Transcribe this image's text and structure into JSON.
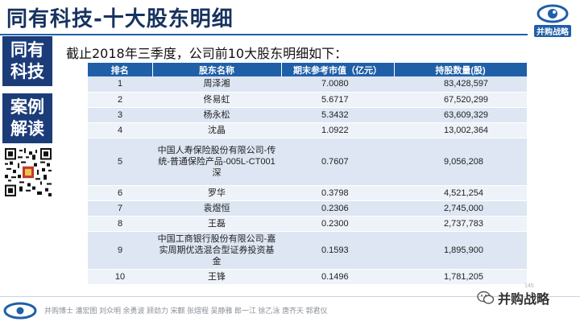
{
  "header": {
    "title": "同有科技-十大股东明细",
    "logo_text": "并购战略"
  },
  "side": {
    "block1_line1": "同有",
    "block1_line2": "科技",
    "block2_line1": "案例",
    "block2_line2": "解读"
  },
  "intro": "截止2018年三季度，公司前10大股东明细如下：",
  "table": {
    "headers": [
      "排名",
      "股东名称",
      "期末参考市值（亿元）",
      "持股数量(股)"
    ],
    "rows": [
      {
        "rank": "1",
        "name": "周泽湘",
        "value": "7.0080",
        "shares": "83,428,597"
      },
      {
        "rank": "2",
        "name": "佟易虹",
        "value": "5.6717",
        "shares": "67,520,299"
      },
      {
        "rank": "3",
        "name": "杨永松",
        "value": "5.3432",
        "shares": "63,609,329"
      },
      {
        "rank": "4",
        "name": "沈晶",
        "value": "1.0922",
        "shares": "13,002,364"
      },
      {
        "rank": "5",
        "name": "中国人寿保险股份有限公司-传统-普通保险产品-005L-CT001深",
        "value": "0.7607",
        "shares": "9,056,208"
      },
      {
        "rank": "6",
        "name": "罗华",
        "value": "0.3798",
        "shares": "4,521,254"
      },
      {
        "rank": "7",
        "name": "袁煜恒",
        "value": "0.2306",
        "shares": "2,745,000"
      },
      {
        "rank": "8",
        "name": "王磊",
        "value": "0.2300",
        "shares": "2,737,783"
      },
      {
        "rank": "9",
        "name": "中国工商银行股份有限公司-嘉实周期优选混合型证券投资基金",
        "value": "0.1593",
        "shares": "1,895,900"
      },
      {
        "rank": "10",
        "name": "王锋",
        "value": "0.1496",
        "shares": "1,781,205"
      }
    ]
  },
  "footer": {
    "names": "并购博士 潘宏图 刘众明 余勇波 顾劲力 宋麒 张熠程 吴静雅 郎一江 徐乙泳 唐齐天 郭君仪",
    "page_number": "145",
    "wechat_label": "并购战略"
  },
  "colors": {
    "accent": "#1f5fa8",
    "side_block": "#1b3c78",
    "title": "#17325f",
    "row_odd": "#dde6f2",
    "row_even": "#eef2f9"
  },
  "icons": [
    "eye-logo-icon",
    "qr-code-icon",
    "wechat-icon",
    "footer-logo-icon"
  ]
}
